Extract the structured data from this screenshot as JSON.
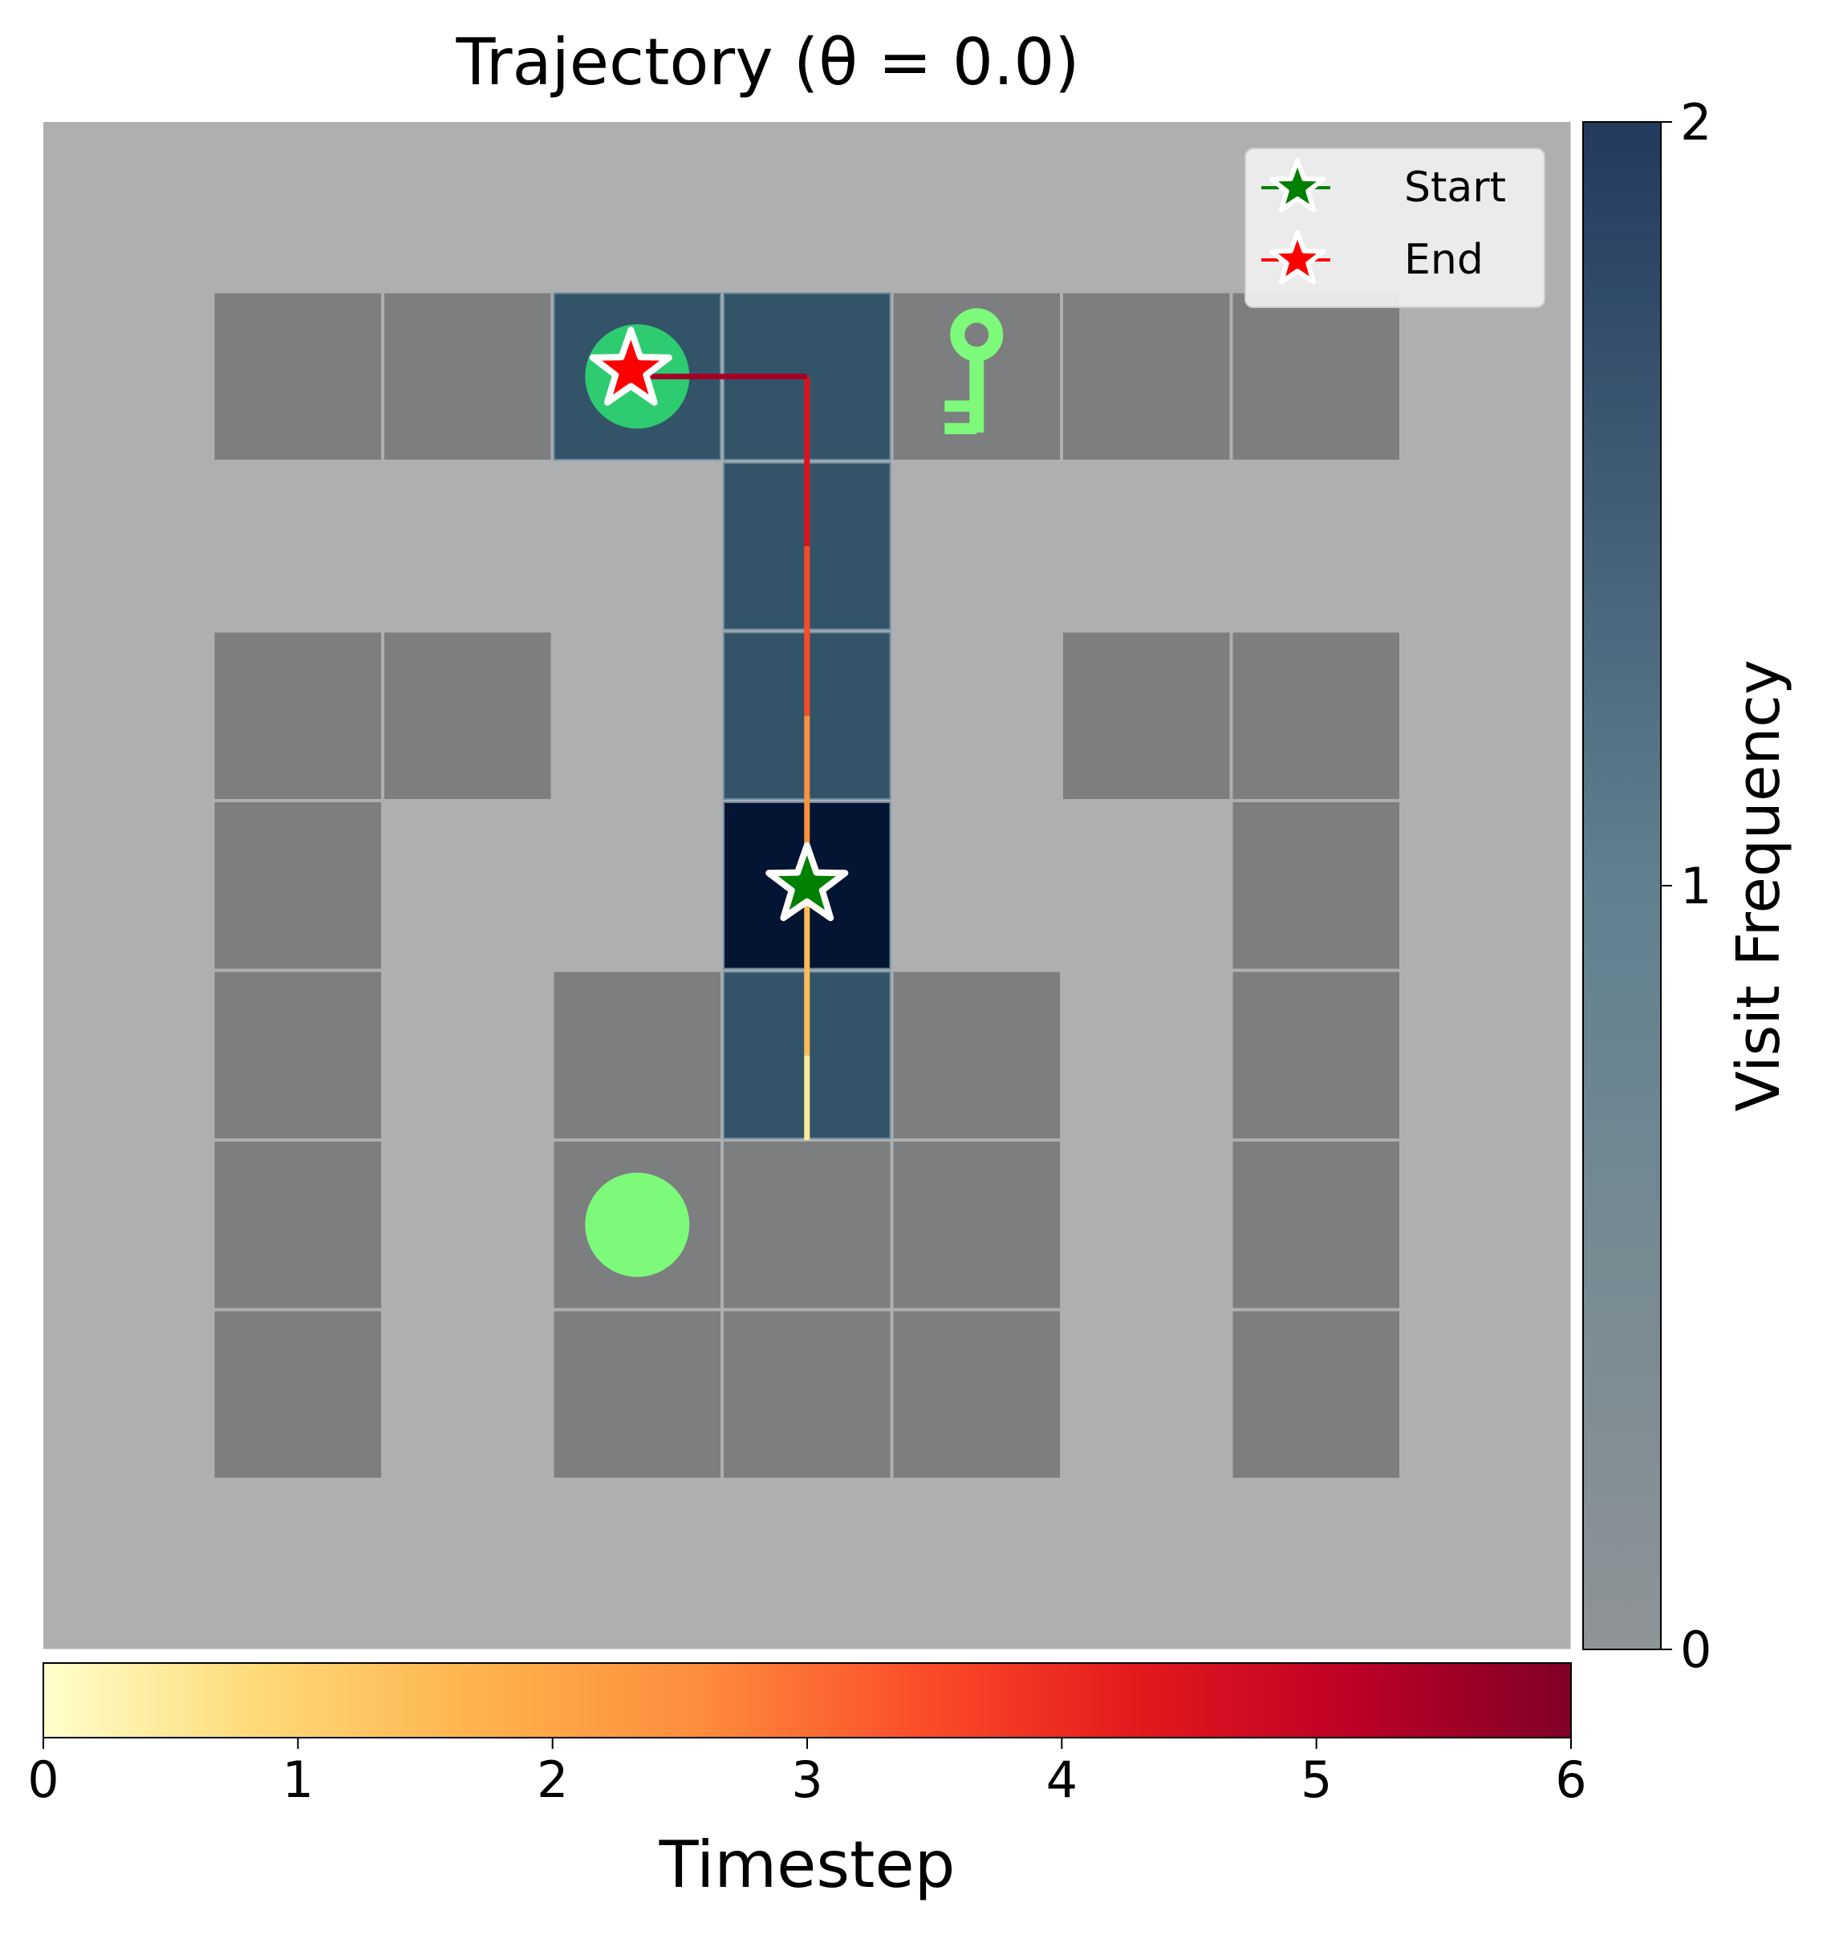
{
  "chart_data": {
    "type": "heatmap",
    "title": "Trajectory (θ = 0.0)",
    "grid": {
      "rows": 9,
      "cols": 9
    },
    "walls": [
      [
        1,
        1
      ],
      [
        1,
        2
      ],
      [
        1,
        5
      ],
      [
        1,
        6
      ],
      [
        1,
        7
      ],
      [
        3,
        1
      ],
      [
        3,
        2
      ],
      [
        3,
        6
      ],
      [
        3,
        7
      ],
      [
        4,
        1
      ],
      [
        4,
        7
      ],
      [
        5,
        1
      ],
      [
        5,
        3
      ],
      [
        5,
        5
      ],
      [
        5,
        7
      ],
      [
        6,
        1
      ],
      [
        6,
        3
      ],
      [
        6,
        4
      ],
      [
        6,
        5
      ],
      [
        6,
        7
      ],
      [
        7,
        1
      ],
      [
        7,
        3
      ],
      [
        7,
        4
      ],
      [
        7,
        5
      ],
      [
        7,
        7
      ]
    ],
    "visit_frequency": [
      {
        "row": 1,
        "col": 3,
        "value": 1
      },
      {
        "row": 1,
        "col": 4,
        "value": 1
      },
      {
        "row": 2,
        "col": 4,
        "value": 1
      },
      {
        "row": 3,
        "col": 4,
        "value": 1
      },
      {
        "row": 4,
        "col": 4,
        "value": 2
      },
      {
        "row": 5,
        "col": 4,
        "value": 1
      }
    ],
    "objects": [
      {
        "kind": "ball",
        "row": 1,
        "col": 3,
        "color": "#2ecc71"
      },
      {
        "kind": "key",
        "row": 1,
        "col": 5,
        "color": "#7dfa7a"
      },
      {
        "kind": "ball",
        "row": 6,
        "col": 3,
        "color": "#7dfa7a"
      }
    ],
    "trajectory": [
      {
        "t": 0,
        "row": 5.5,
        "col": 4
      },
      {
        "t": 1,
        "row": 5,
        "col": 4
      },
      {
        "t": 2,
        "row": 4,
        "col": 4
      },
      {
        "t": 3,
        "row": 3,
        "col": 4
      },
      {
        "t": 4,
        "row": 2,
        "col": 4
      },
      {
        "t": 5,
        "row": 1,
        "col": 4
      },
      {
        "t": 6,
        "row": 1,
        "col": 3
      }
    ],
    "start": {
      "row": 4,
      "col": 4
    },
    "end": {
      "row": 1,
      "col": 3
    },
    "legend": {
      "placement": "upper-right",
      "entries": [
        {
          "label": "Start",
          "color": "#008000"
        },
        {
          "label": "End",
          "color": "#ff0000"
        }
      ]
    },
    "visit_colorbar": {
      "label": "Visit Frequency",
      "range": [
        0,
        2
      ],
      "ticks": [
        "0",
        "1",
        "2"
      ],
      "colors": [
        "#8e9396",
        "#60818f",
        "#233a5e"
      ]
    },
    "time_colorbar": {
      "label": "Timestep",
      "range": [
        0,
        6
      ],
      "ticks": [
        "0",
        "1",
        "2",
        "3",
        "4",
        "5",
        "6"
      ],
      "colors": [
        "#ffffcc",
        "#fed976",
        "#feb24c",
        "#fd8d3c",
        "#fc4e2a",
        "#e31a1c",
        "#bd0026",
        "#800026"
      ]
    },
    "colors": {
      "floor": "#aeafb1",
      "wall": "#7d7e80",
      "visited_cell": "#335468",
      "visited_peak": "#031532"
    }
  }
}
